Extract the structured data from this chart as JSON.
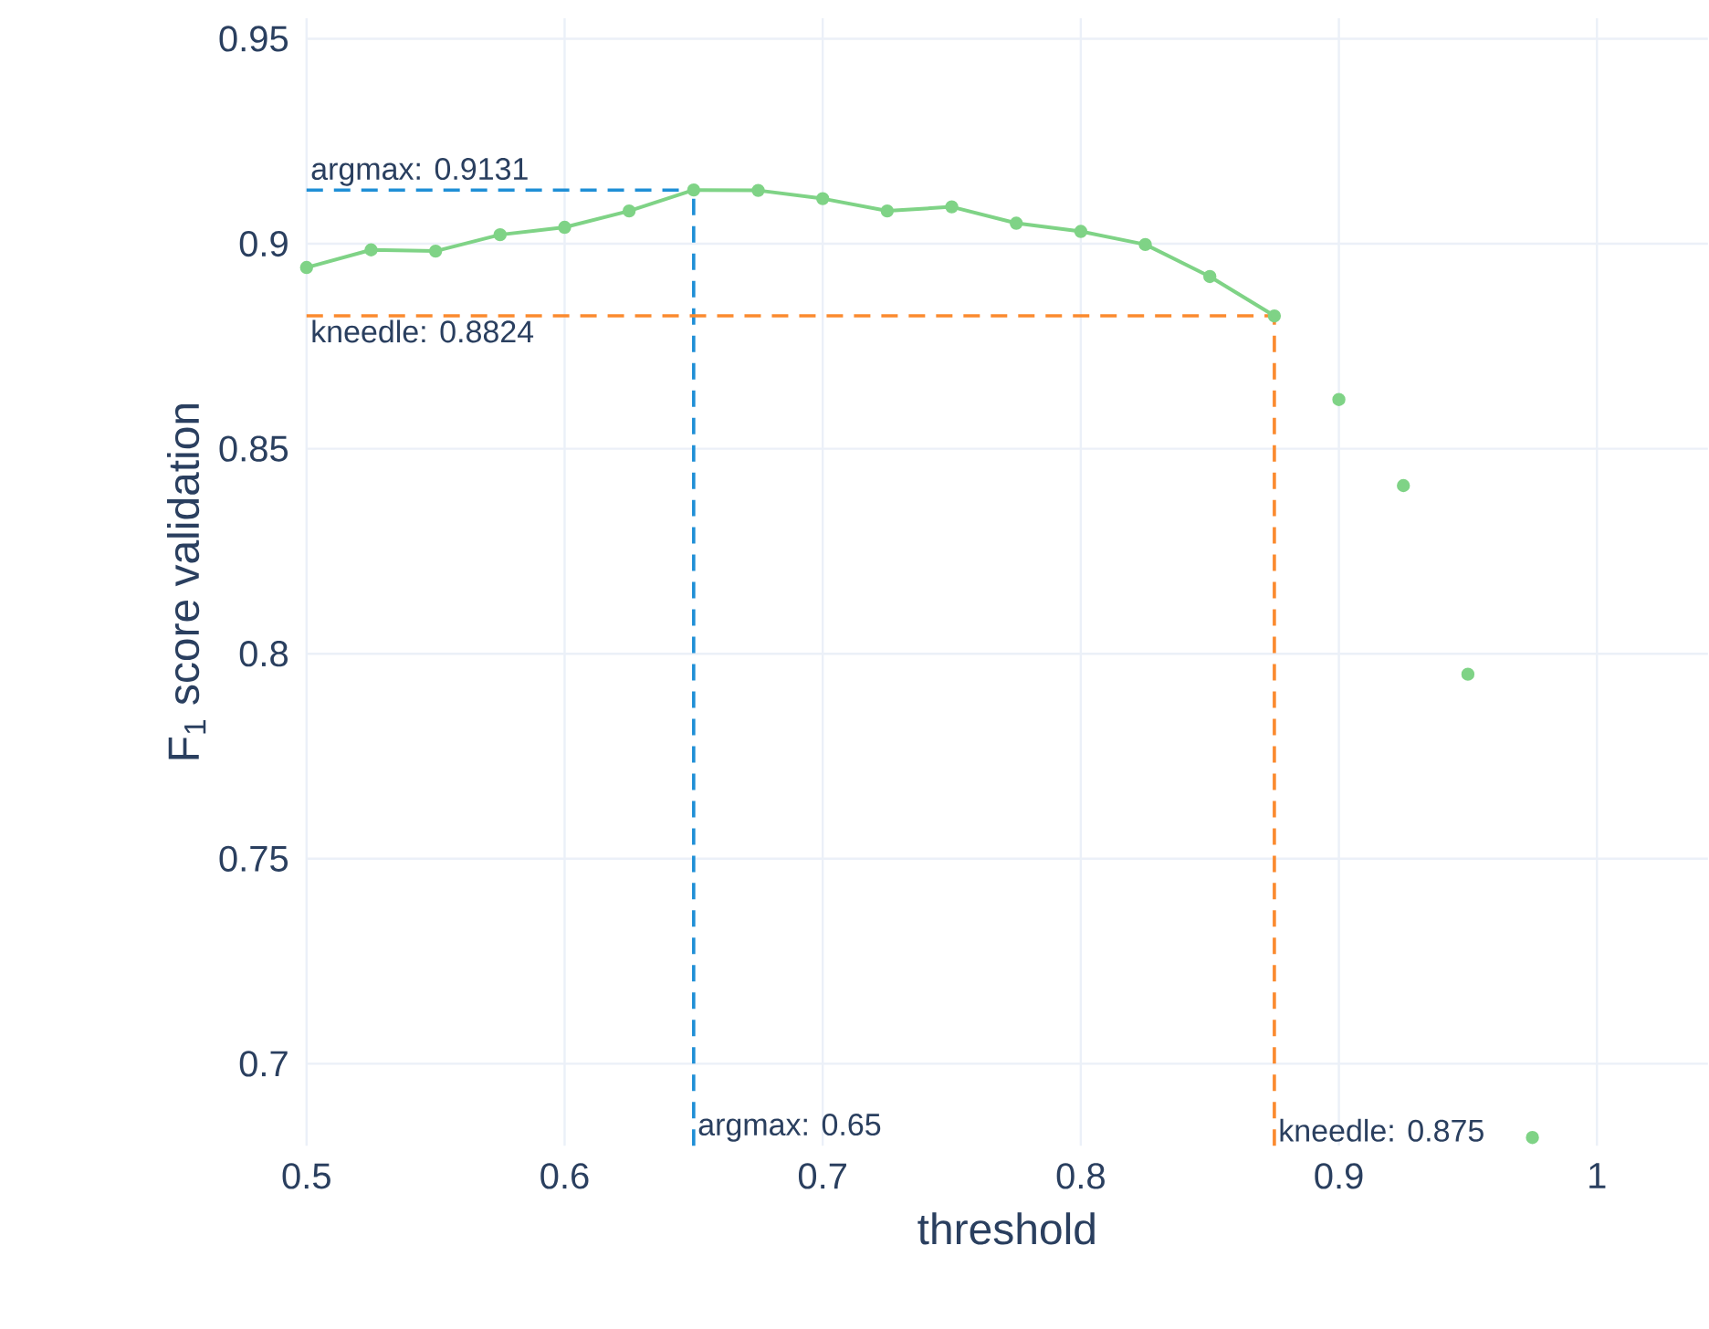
{
  "chart_data": {
    "type": "line",
    "xlabel": "threshold",
    "ylabel": "F$_{1}$ score validation",
    "series": [
      {
        "color": "#7fd386",
        "marker": "circle",
        "x": [
          0.5,
          0.525,
          0.55,
          0.575,
          0.6,
          0.625,
          0.65,
          0.675,
          0.7,
          0.725,
          0.75,
          0.775,
          0.8,
          0.825,
          0.85,
          0.875
        ],
        "values": [
          0.8942,
          0.8985,
          0.8982,
          0.9022,
          0.904,
          0.908,
          0.9131,
          0.913,
          0.911,
          0.908,
          0.909,
          0.905,
          0.903,
          0.8998,
          0.892,
          0.8824
        ]
      },
      {
        "type": "scatter",
        "color": "#7fd386",
        "marker": "circle",
        "x": [
          0.9,
          0.925,
          0.95,
          0.975
        ],
        "values": [
          0.862,
          0.841,
          0.795,
          0.682
        ]
      }
    ],
    "ref_lines": [
      {
        "axis": "y",
        "value": 0.9131,
        "label": "argmax: 0.9131",
        "color": "#1f8fd6",
        "line_style": "dashed"
      },
      {
        "axis": "x",
        "value": 0.65,
        "label": "argmax: 0.65",
        "color": "#1f8fd6",
        "line_style": "dashed"
      },
      {
        "axis": "y",
        "value": 0.8824,
        "label": "kneedle: 0.8824",
        "color": "#fb8a2e",
        "line_style": "dashed"
      },
      {
        "axis": "x",
        "value": 0.875,
        "label": "kneedle: 0.875",
        "color": "#fb8a2e",
        "line_style": "dashed"
      }
    ],
    "xlim": [
      0.5,
      1.043
    ],
    "ylim": [
      0.68,
      0.955
    ],
    "xticks": [
      0.5,
      0.6,
      0.7,
      0.8,
      0.9,
      1
    ],
    "yticks": [
      0.7,
      0.75,
      0.8,
      0.85,
      0.9,
      0.95
    ],
    "grid": true
  }
}
